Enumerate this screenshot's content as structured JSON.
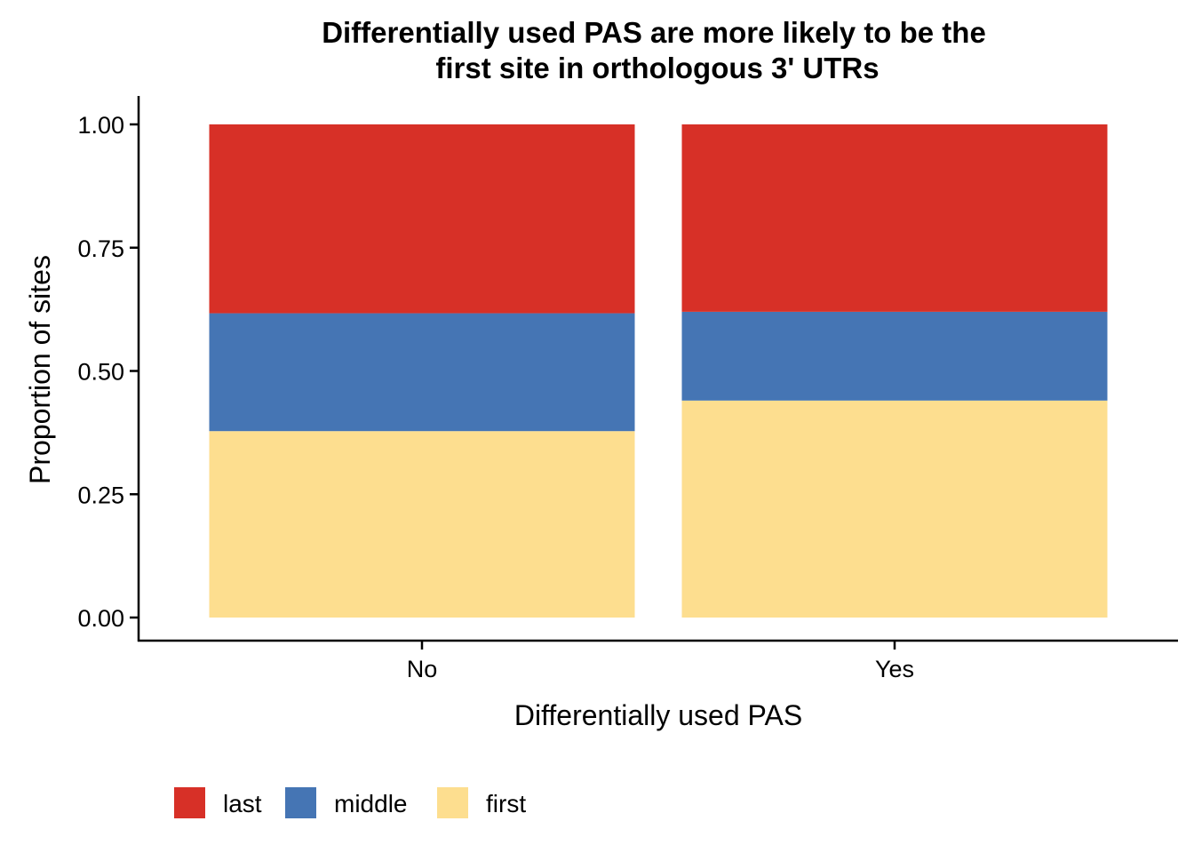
{
  "chart_data": {
    "type": "bar",
    "stacked": true,
    "normalized": true,
    "title": [
      "Differentially used PAS are more likely to be the",
      "first site in orthologous 3' UTRs"
    ],
    "xlabel": "Differentially used PAS",
    "ylabel": "Proportion of sites",
    "categories": [
      "No",
      "Yes"
    ],
    "ylim": [
      0,
      1
    ],
    "yticks": [
      "0.00",
      "0.25",
      "0.50",
      "0.75",
      "1.00"
    ],
    "grid": false,
    "legend_position": "bottom-left",
    "series": [
      {
        "name": "first",
        "color": "#FDDE8F",
        "values": [
          0.378,
          0.44
        ]
      },
      {
        "name": "middle",
        "color": "#4575B4",
        "values": [
          0.239,
          0.18
        ]
      },
      {
        "name": "last",
        "color": "#D73027",
        "values": [
          0.383,
          0.38
        ]
      }
    ],
    "legend_order": [
      "last",
      "middle",
      "first"
    ]
  }
}
